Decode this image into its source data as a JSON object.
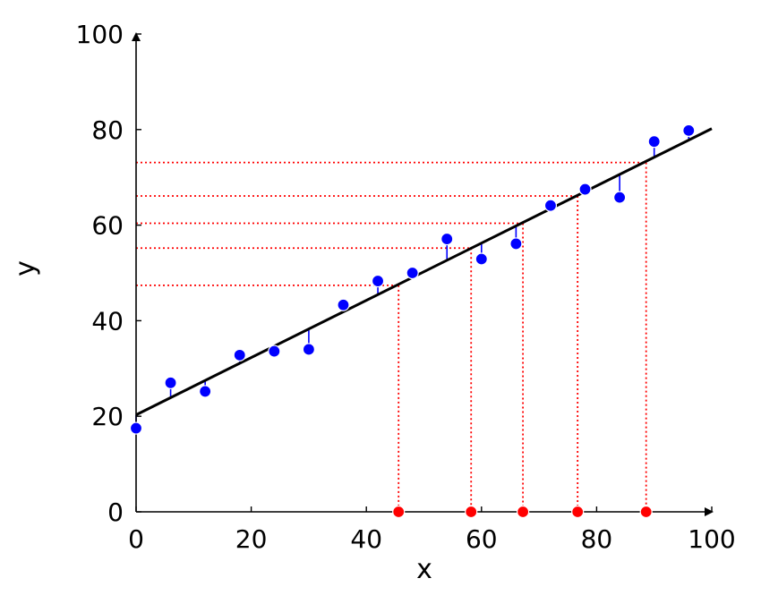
{
  "chart_data": {
    "type": "scatter",
    "xlabel": "x",
    "ylabel": "y",
    "xlim": [
      0,
      100
    ],
    "ylim": [
      0,
      100
    ],
    "x_ticks": [
      0,
      20,
      40,
      60,
      80,
      100
    ],
    "y_ticks": [
      0,
      20,
      40,
      60,
      80,
      100
    ],
    "grid": false,
    "series": [
      {
        "type": "scatter",
        "color": "#0000ff",
        "points": [
          {
            "x": 0,
            "y": 17.5
          },
          {
            "x": 6,
            "y": 27.0
          },
          {
            "x": 12,
            "y": 25.2
          },
          {
            "x": 18,
            "y": 32.8
          },
          {
            "x": 24,
            "y": 33.6
          },
          {
            "x": 30,
            "y": 34.0
          },
          {
            "x": 36,
            "y": 43.3
          },
          {
            "x": 42,
            "y": 48.3
          },
          {
            "x": 48,
            "y": 50.0
          },
          {
            "x": 54,
            "y": 57.1
          },
          {
            "x": 60,
            "y": 52.9
          },
          {
            "x": 66,
            "y": 56.1
          },
          {
            "x": 72,
            "y": 64.1
          },
          {
            "x": 78,
            "y": 67.5
          },
          {
            "x": 84,
            "y": 65.8
          },
          {
            "x": 90,
            "y": 77.5
          },
          {
            "x": 96,
            "y": 79.8
          }
        ]
      },
      {
        "type": "line",
        "color": "#000000",
        "x": [
          0,
          100
        ],
        "y": [
          20.3,
          80.2
        ]
      },
      {
        "type": "scatter",
        "color": "#ff0000",
        "projections": [
          {
            "x": 45.6,
            "y": 47.4
          },
          {
            "x": 58.2,
            "y": 55.2
          },
          {
            "x": 67.2,
            "y": 60.4
          },
          {
            "x": 76.7,
            "y": 66.1
          },
          {
            "x": 88.6,
            "y": 73.1
          }
        ]
      }
    ]
  }
}
